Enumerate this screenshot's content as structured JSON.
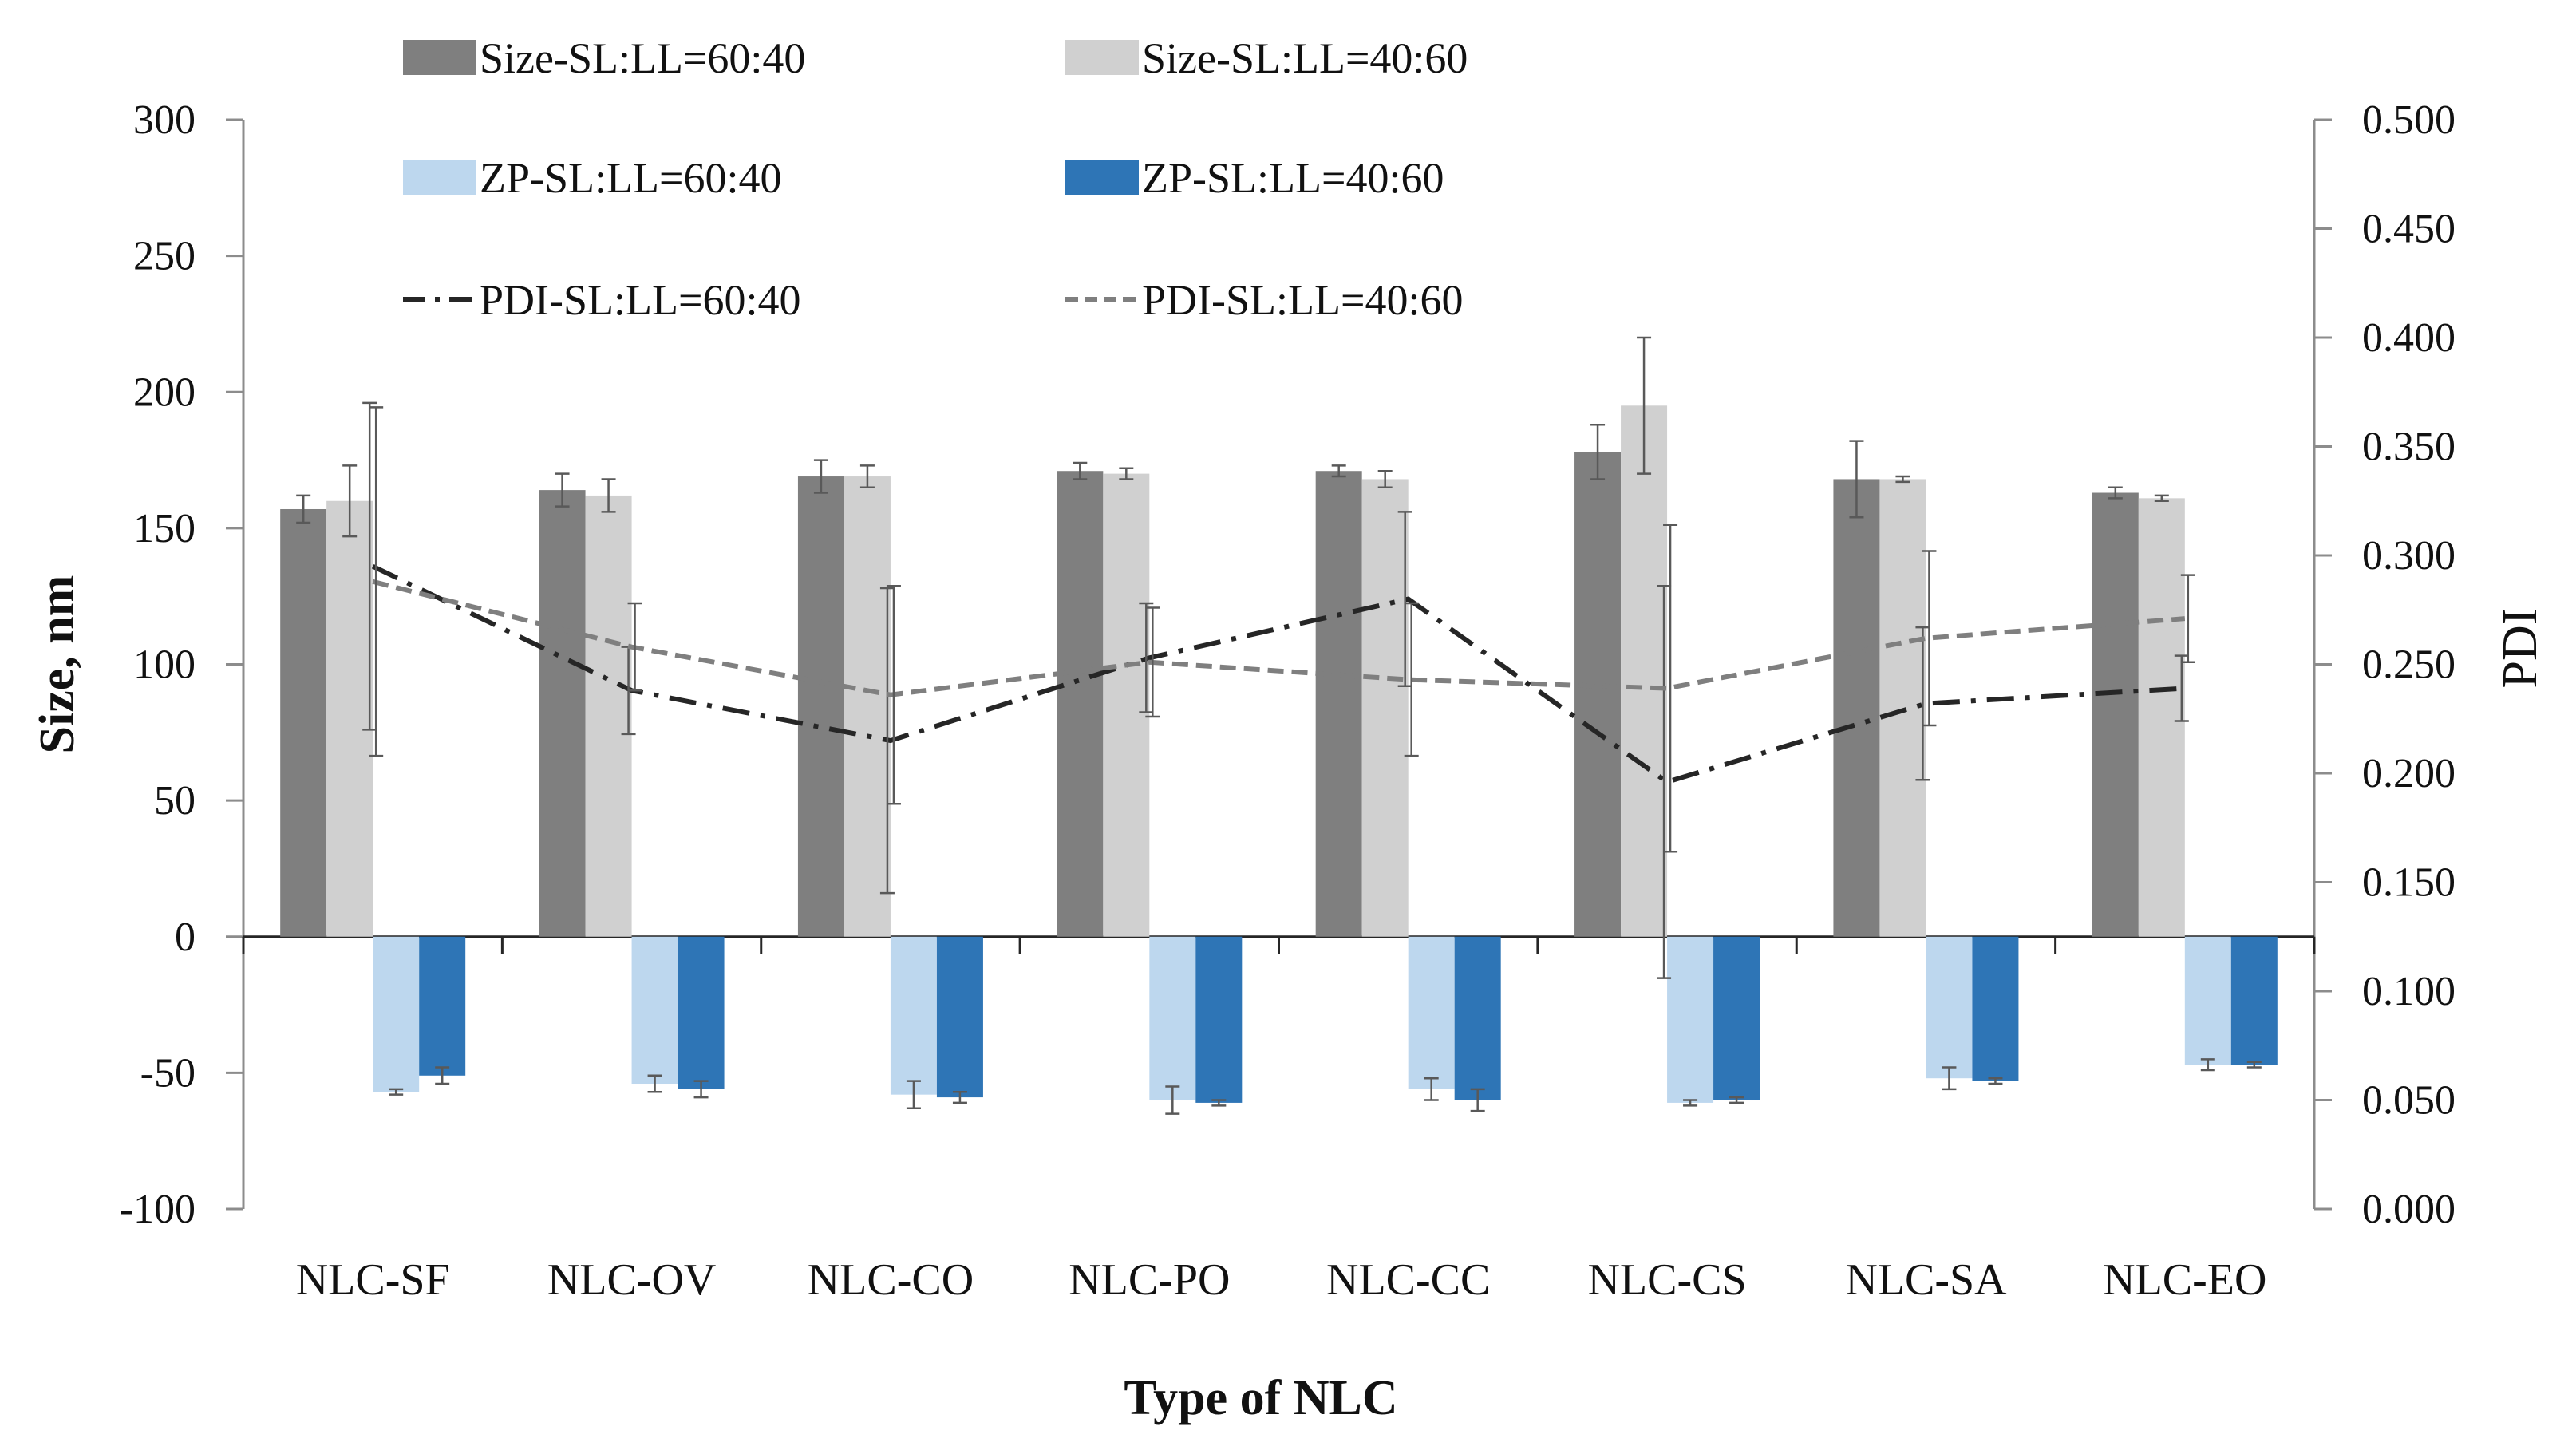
{
  "chart_data": {
    "type": "bar",
    "title": "",
    "xlabel": "Type of NLC",
    "ylabel": "Size, nm",
    "y2label": "PDI",
    "ylim": [
      -100,
      300
    ],
    "y2lim": [
      0,
      0.5
    ],
    "yticks": [
      300,
      250,
      200,
      150,
      100,
      50,
      0,
      -50,
      -100
    ],
    "y2ticks": [
      "0.500",
      "0.450",
      "0.400",
      "0.350",
      "0.300",
      "0.250",
      "0.200",
      "0.150",
      "0.100",
      "0.050",
      "0.000"
    ],
    "categories": [
      "NLC-SF",
      "NLC-OV",
      "NLC-CO",
      "NLC-PO",
      "NLC-CC",
      "NLC-CS",
      "NLC-SA",
      "NLC-EO"
    ],
    "series": [
      {
        "name": "Size-SL:LL=60:40",
        "kind": "bar",
        "color": "#7f7f7f",
        "values": [
          157,
          164,
          169,
          171,
          171,
          178,
          168,
          163
        ],
        "errors": [
          5,
          6,
          6,
          3,
          2,
          10,
          14,
          2
        ]
      },
      {
        "name": "Size-SL:LL=40:60",
        "kind": "bar",
        "color": "#d0d0d0",
        "values": [
          160,
          162,
          169,
          170,
          168,
          195,
          168,
          161
        ],
        "errors": [
          13,
          6,
          4,
          2,
          3,
          25,
          1,
          1
        ]
      },
      {
        "name": "ZP-SL:LL=60:40",
        "kind": "bar",
        "color": "#bdd7ee",
        "values": [
          -57,
          -54,
          -58,
          -60,
          -56,
          -61,
          -52,
          -47
        ],
        "errors": [
          1,
          3,
          5,
          5,
          4,
          1,
          4,
          2
        ]
      },
      {
        "name": "ZP-SL:LL=40:60",
        "kind": "bar",
        "color": "#2e75b6",
        "values": [
          -51,
          -56,
          -59,
          -61,
          -60,
          -60,
          -53,
          -47
        ],
        "errors": [
          3,
          3,
          2,
          1,
          4,
          1,
          1,
          1
        ]
      },
      {
        "name": "PDI-SL:LL=60:40",
        "kind": "line",
        "axis": "right",
        "color": "#262626",
        "dash": "dashdot",
        "values": [
          0.295,
          0.238,
          0.215,
          0.253,
          0.28,
          0.196,
          0.232,
          0.239
        ],
        "errors": [
          0.075,
          0.02,
          0.07,
          0.025,
          0.04,
          0.09,
          0.035,
          0.015
        ]
      },
      {
        "name": "PDI-SL:LL=40:60",
        "kind": "line",
        "axis": "right",
        "color": "#7f7f7f",
        "dash": "dash",
        "values": [
          0.288,
          0.258,
          0.236,
          0.251,
          0.243,
          0.239,
          0.262,
          0.271
        ],
        "errors": [
          0.08,
          0.02,
          0.05,
          0.025,
          0.035,
          0.075,
          0.04,
          0.02
        ]
      }
    ],
    "legend": "top-left, two columns",
    "grid": false
  }
}
